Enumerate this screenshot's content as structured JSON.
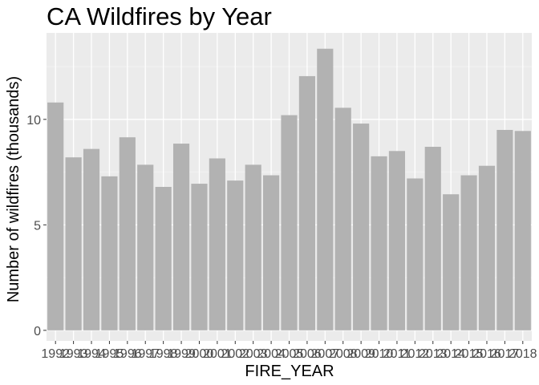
{
  "chart_data": {
    "type": "bar",
    "title": "CA Wildfires by Year",
    "xlabel": "FIRE_YEAR",
    "ylabel": "Number of wildfires (thousands)",
    "categories": [
      "1992",
      "1993",
      "1994",
      "1995",
      "1996",
      "1997",
      "1998",
      "1999",
      "2000",
      "2001",
      "2002",
      "2003",
      "2004",
      "2005",
      "2006",
      "2007",
      "2008",
      "2009",
      "2010",
      "2011",
      "2012",
      "2013",
      "2014",
      "2015",
      "2016",
      "2017",
      "2018"
    ],
    "values": [
      10.8,
      8.2,
      8.6,
      7.3,
      9.15,
      7.85,
      6.8,
      8.85,
      6.95,
      8.15,
      7.1,
      7.85,
      7.35,
      10.2,
      12.05,
      13.35,
      10.55,
      9.8,
      8.25,
      8.5,
      7.2,
      8.7,
      6.45,
      7.35,
      7.8,
      9.5,
      9.45
    ],
    "yticks": [
      0,
      5,
      10
    ],
    "ytick_labels": [
      "0",
      "5",
      "10"
    ],
    "ylim": [
      -0.5,
      14.1
    ],
    "grid": true,
    "colors": {
      "bar": "#b2b2b2",
      "panel": "#ebebeb",
      "grid_major": "#ffffff",
      "text": "#000000",
      "tick_text": "#4d4d4d"
    }
  }
}
